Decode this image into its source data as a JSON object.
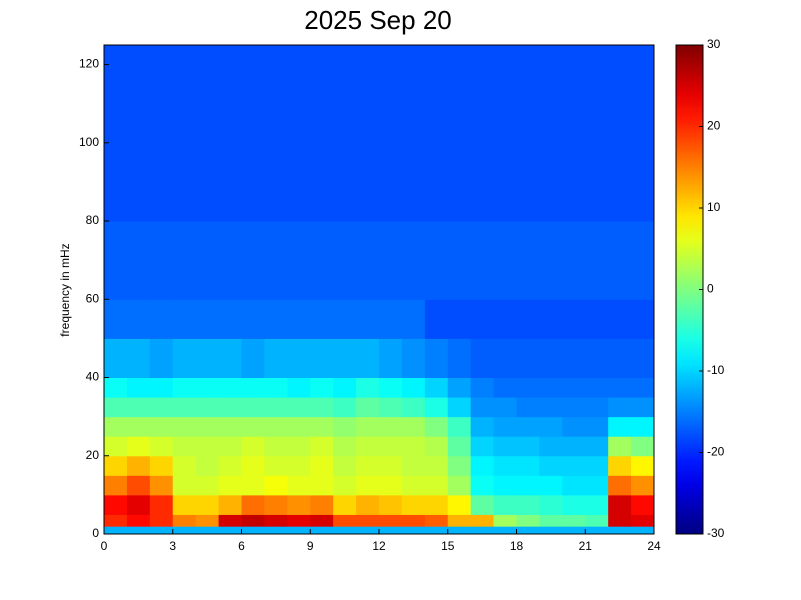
{
  "chart_data": {
    "type": "heatmap",
    "title": "2025 Sep 20",
    "ylabel": "frequency in mHz",
    "colormap": "jet",
    "clim": [
      -30,
      30
    ],
    "cticks": [
      -30,
      -20,
      -10,
      0,
      10,
      20,
      30
    ],
    "xlim": [
      0,
      24
    ],
    "xticks": [
      0,
      3,
      6,
      9,
      12,
      15,
      18,
      21,
      24
    ],
    "ylim": [
      0,
      125
    ],
    "yticks": [
      0,
      20,
      40,
      60,
      80,
      100,
      120
    ],
    "x_bins": [
      0,
      1,
      2,
      3,
      4,
      5,
      6,
      7,
      8,
      9,
      10,
      11,
      12,
      13,
      14,
      15,
      16,
      17,
      18,
      19,
      20,
      21,
      22,
      23,
      24
    ],
    "y_bins": [
      0,
      2,
      5,
      10,
      15,
      20,
      25,
      30,
      35,
      40,
      50,
      60,
      80,
      100,
      125
    ],
    "z": [
      [
        -12,
        -12,
        -12,
        -12,
        -12,
        -12,
        -12,
        -12,
        -12,
        -12,
        -12,
        -12,
        -12,
        -12,
        -12,
        -12,
        -12,
        -12,
        -12,
        -12,
        -12,
        -12,
        -12,
        -12
      ],
      [
        20,
        22,
        20,
        15,
        14,
        25,
        26,
        25,
        24,
        25,
        18,
        18,
        18,
        18,
        17,
        12,
        12,
        2,
        0,
        -2,
        -2,
        -3,
        25,
        24
      ],
      [
        22,
        24,
        20,
        10,
        10,
        12,
        16,
        15,
        14,
        15,
        10,
        12,
        11,
        10,
        10,
        8,
        -2,
        -4,
        -4,
        -5,
        -6,
        -6,
        25,
        22
      ],
      [
        15,
        18,
        14,
        5,
        5,
        6,
        6,
        7,
        6,
        6,
        5,
        6,
        6,
        5,
        5,
        2,
        -7,
        -8,
        -8,
        -8,
        -9,
        -9,
        16,
        14
      ],
      [
        10,
        12,
        10,
        5,
        4,
        5,
        6,
        5,
        5,
        6,
        4,
        5,
        5,
        4,
        4,
        0,
        -8,
        -9,
        -9,
        -10,
        -10,
        -10,
        10,
        8
      ],
      [
        5,
        6,
        5,
        4,
        4,
        4,
        5,
        4,
        4,
        5,
        3,
        4,
        4,
        4,
        3,
        -2,
        -10,
        -11,
        -11,
        -12,
        -12,
        -12,
        2,
        0
      ],
      [
        2,
        2,
        2,
        2,
        2,
        2,
        2,
        2,
        2,
        2,
        1,
        2,
        2,
        2,
        0,
        -4,
        -12,
        -13,
        -13,
        -13,
        -14,
        -14,
        -8,
        -8
      ],
      [
        -3,
        -3,
        -3,
        -3,
        -3,
        -3,
        -3,
        -3,
        -3,
        -3,
        -4,
        -2,
        -3,
        -4,
        -6,
        -10,
        -14,
        -14,
        -15,
        -15,
        -15,
        -15,
        -14,
        -14
      ],
      [
        -7,
        -8,
        -8,
        -7,
        -7,
        -7,
        -7,
        -7,
        -8,
        -7,
        -8,
        -6,
        -7,
        -8,
        -10,
        -13,
        -15,
        -16,
        -16,
        -16,
        -16,
        -16,
        -16,
        -16
      ],
      [
        -12,
        -12,
        -13,
        -12,
        -12,
        -12,
        -13,
        -12,
        -12,
        -12,
        -12,
        -12,
        -13,
        -14,
        -15,
        -16,
        -17,
        -17,
        -17,
        -17,
        -17,
        -17,
        -17,
        -17
      ],
      [
        -16,
        -16,
        -16,
        -16,
        -16,
        -16,
        -16,
        -16,
        -16,
        -16,
        -16,
        -16,
        -16,
        -16,
        -18,
        -18,
        -18,
        -18,
        -18,
        -18,
        -18,
        -18,
        -18,
        -18
      ],
      [
        -17,
        -17,
        -17,
        -17,
        -17,
        -17,
        -17,
        -17,
        -17,
        -17,
        -17,
        -17,
        -17,
        -17,
        -17,
        -17,
        -17,
        -17,
        -17,
        -17,
        -17,
        -17,
        -17,
        -17
      ],
      [
        -18,
        -18,
        -18,
        -18,
        -18,
        -18,
        -18,
        -18,
        -18,
        -18,
        -18,
        -18,
        -18,
        -18,
        -18,
        -18,
        -18,
        -18,
        -18,
        -18,
        -18,
        -18,
        -18,
        -18
      ],
      [
        -18,
        -18,
        -18,
        -18,
        -18,
        -18,
        -18,
        -18,
        -18,
        -18,
        -18,
        -18,
        -18,
        -18,
        -18,
        -18,
        -18,
        -18,
        -18,
        -18,
        -18,
        -18,
        -18,
        -18
      ]
    ]
  }
}
